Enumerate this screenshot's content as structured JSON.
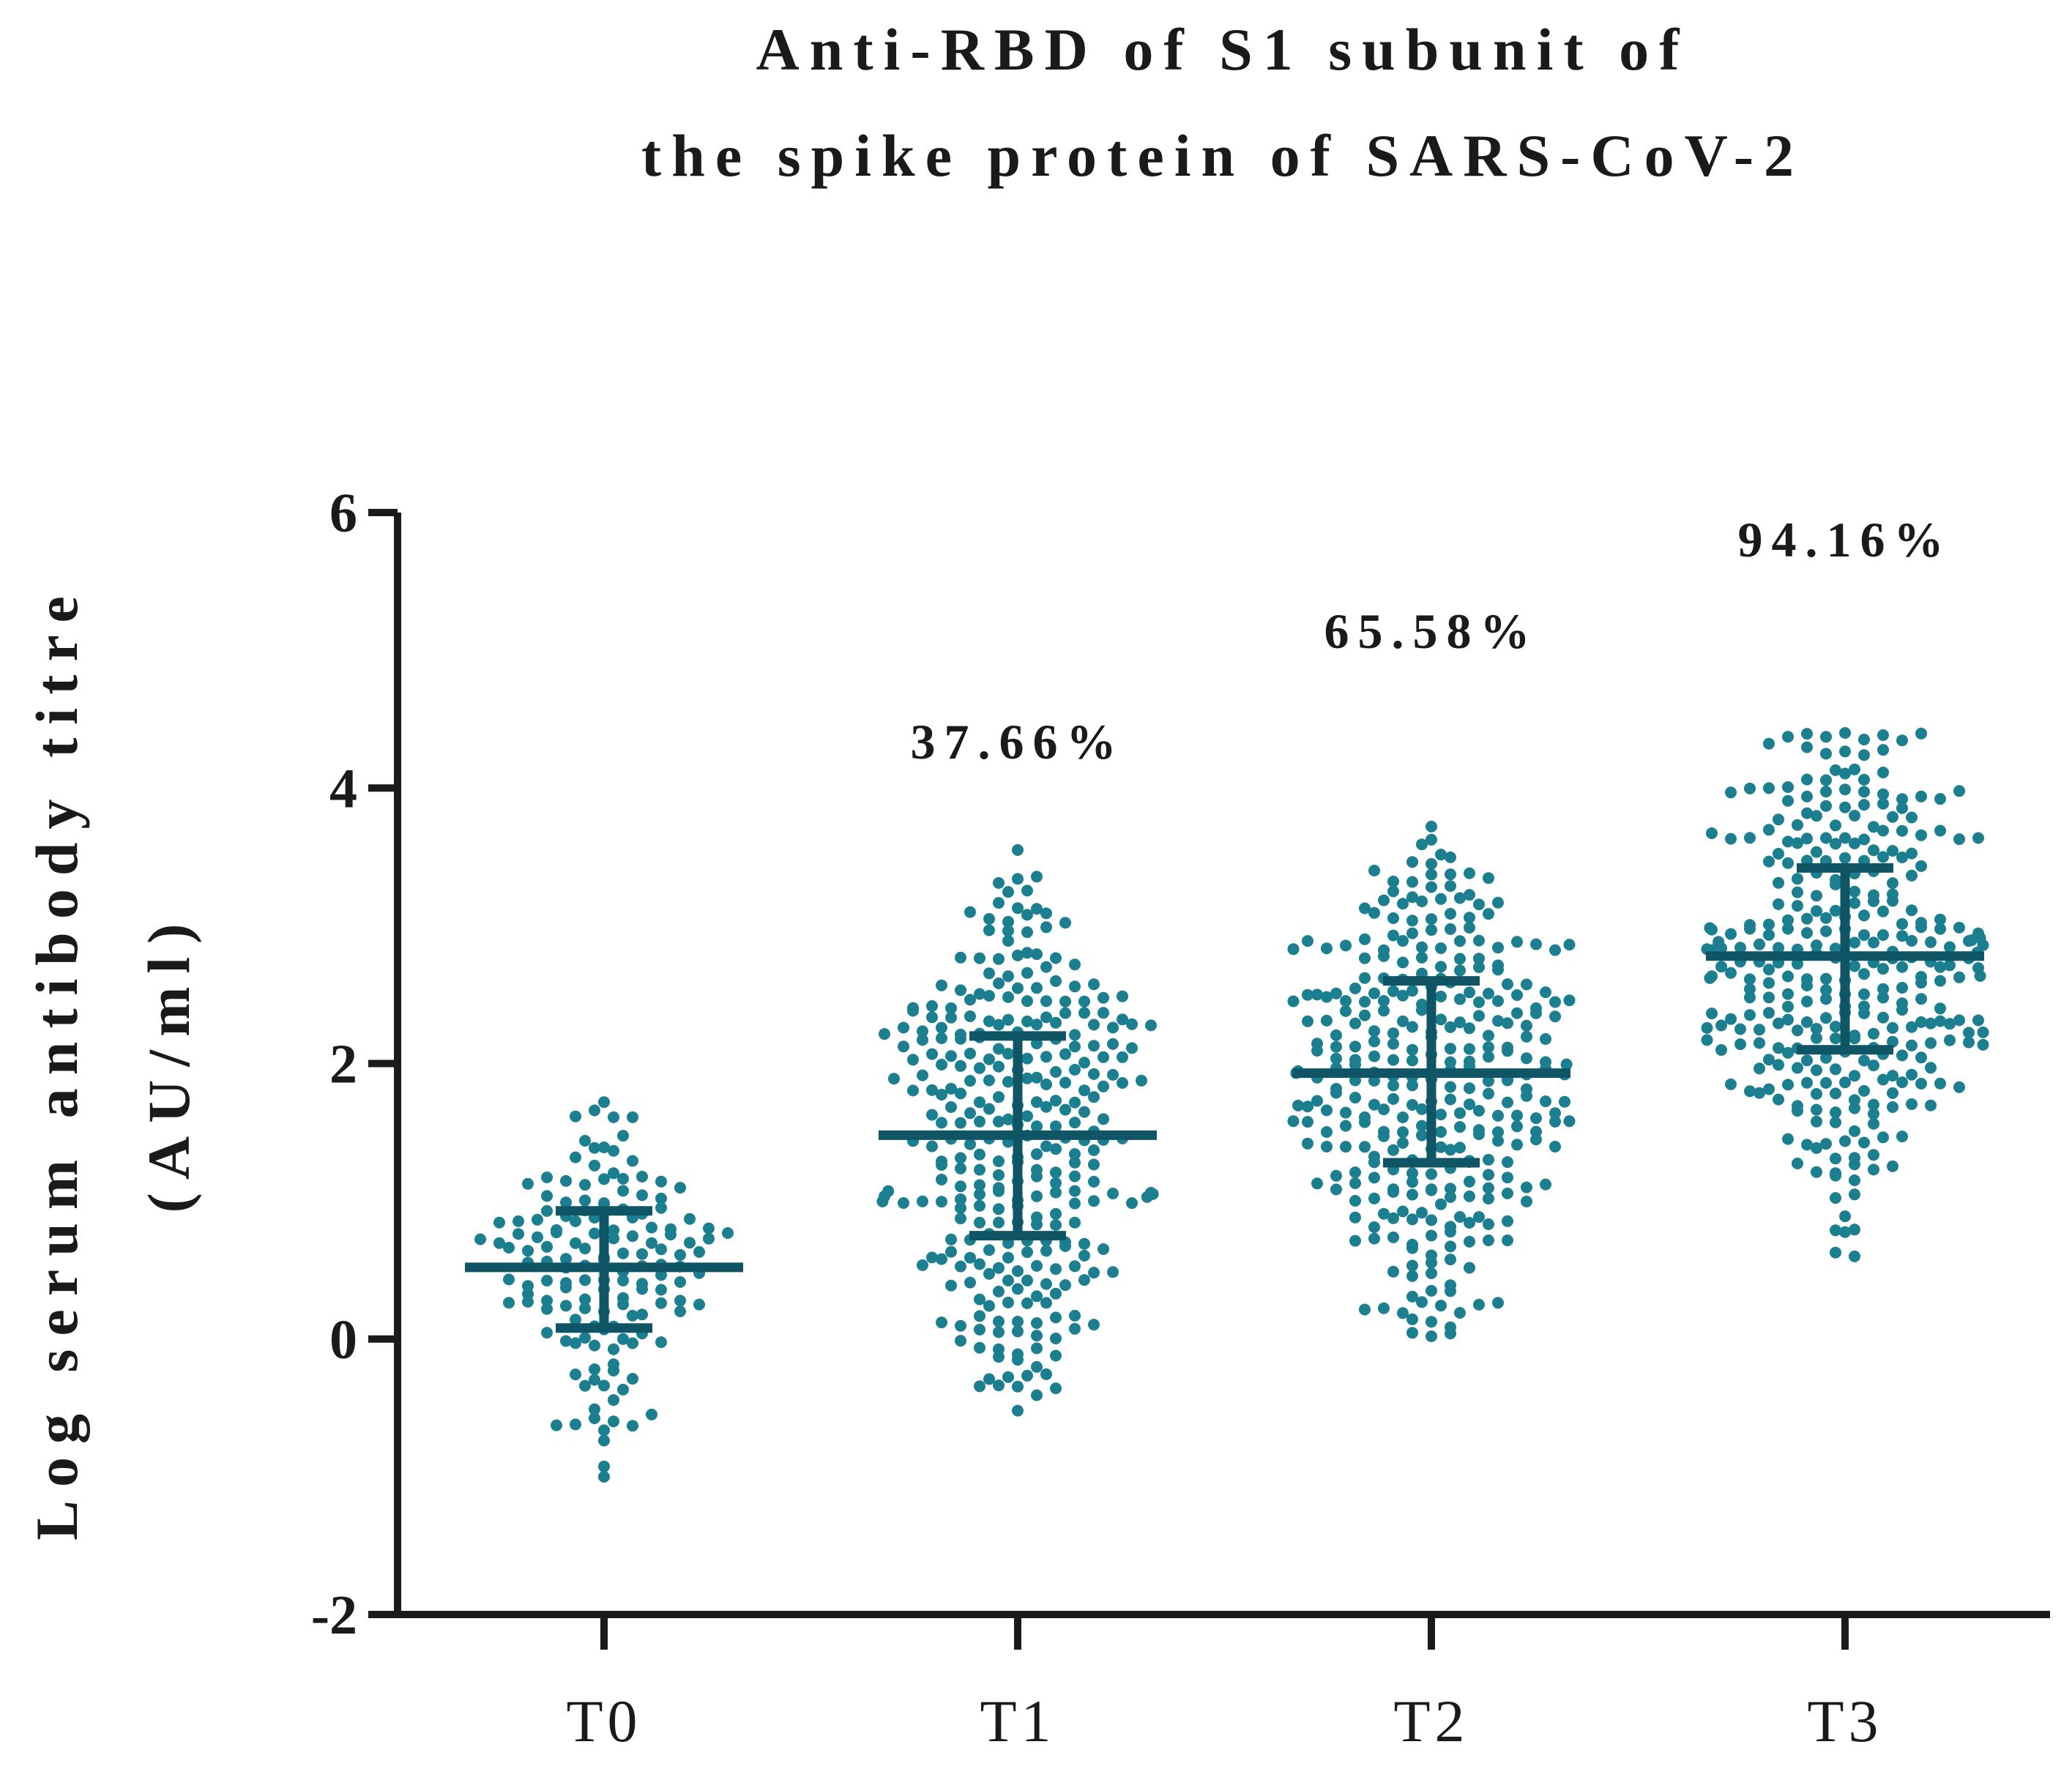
{
  "chart_data": {
    "type": "scatter",
    "subtype": "beeswarm with median and interquartile range",
    "title_lines": [
      "Anti-RBD of S1 subunit of",
      "the spike protein of SARS-CoV-2"
    ],
    "ylabel_lines": [
      "Log serum antibody titre",
      "(AU/ml)"
    ],
    "xlabel": "",
    "ylim": [
      -2,
      6
    ],
    "yticks": [
      -2,
      0,
      2,
      4,
      6
    ],
    "categories": [
      "T0",
      "T1",
      "T2",
      "T3"
    ],
    "groups": [
      {
        "name": "T0",
        "median": 0.52,
        "q1": 0.08,
        "q3": 0.93,
        "min": -1.0,
        "max": 1.72,
        "n": 150,
        "percent_label": ""
      },
      {
        "name": "T1",
        "median": 1.48,
        "q1": 0.75,
        "q3": 2.2,
        "min": -0.52,
        "max": 3.55,
        "n": 310,
        "percent_label": "37.66%"
      },
      {
        "name": "T2",
        "median": 1.93,
        "q1": 1.28,
        "q3": 2.6,
        "min": 0.02,
        "max": 3.72,
        "n": 330,
        "percent_label": "65.58%"
      },
      {
        "name": "T3",
        "median": 2.78,
        "q1": 2.1,
        "q3": 3.42,
        "min": 0.6,
        "max": 4.4,
        "n": 330,
        "percent_label": "94.16%"
      }
    ],
    "point_color": "#1b7f8f",
    "summary_color": "#0f5566",
    "axis_color": "#1a1a1a"
  }
}
